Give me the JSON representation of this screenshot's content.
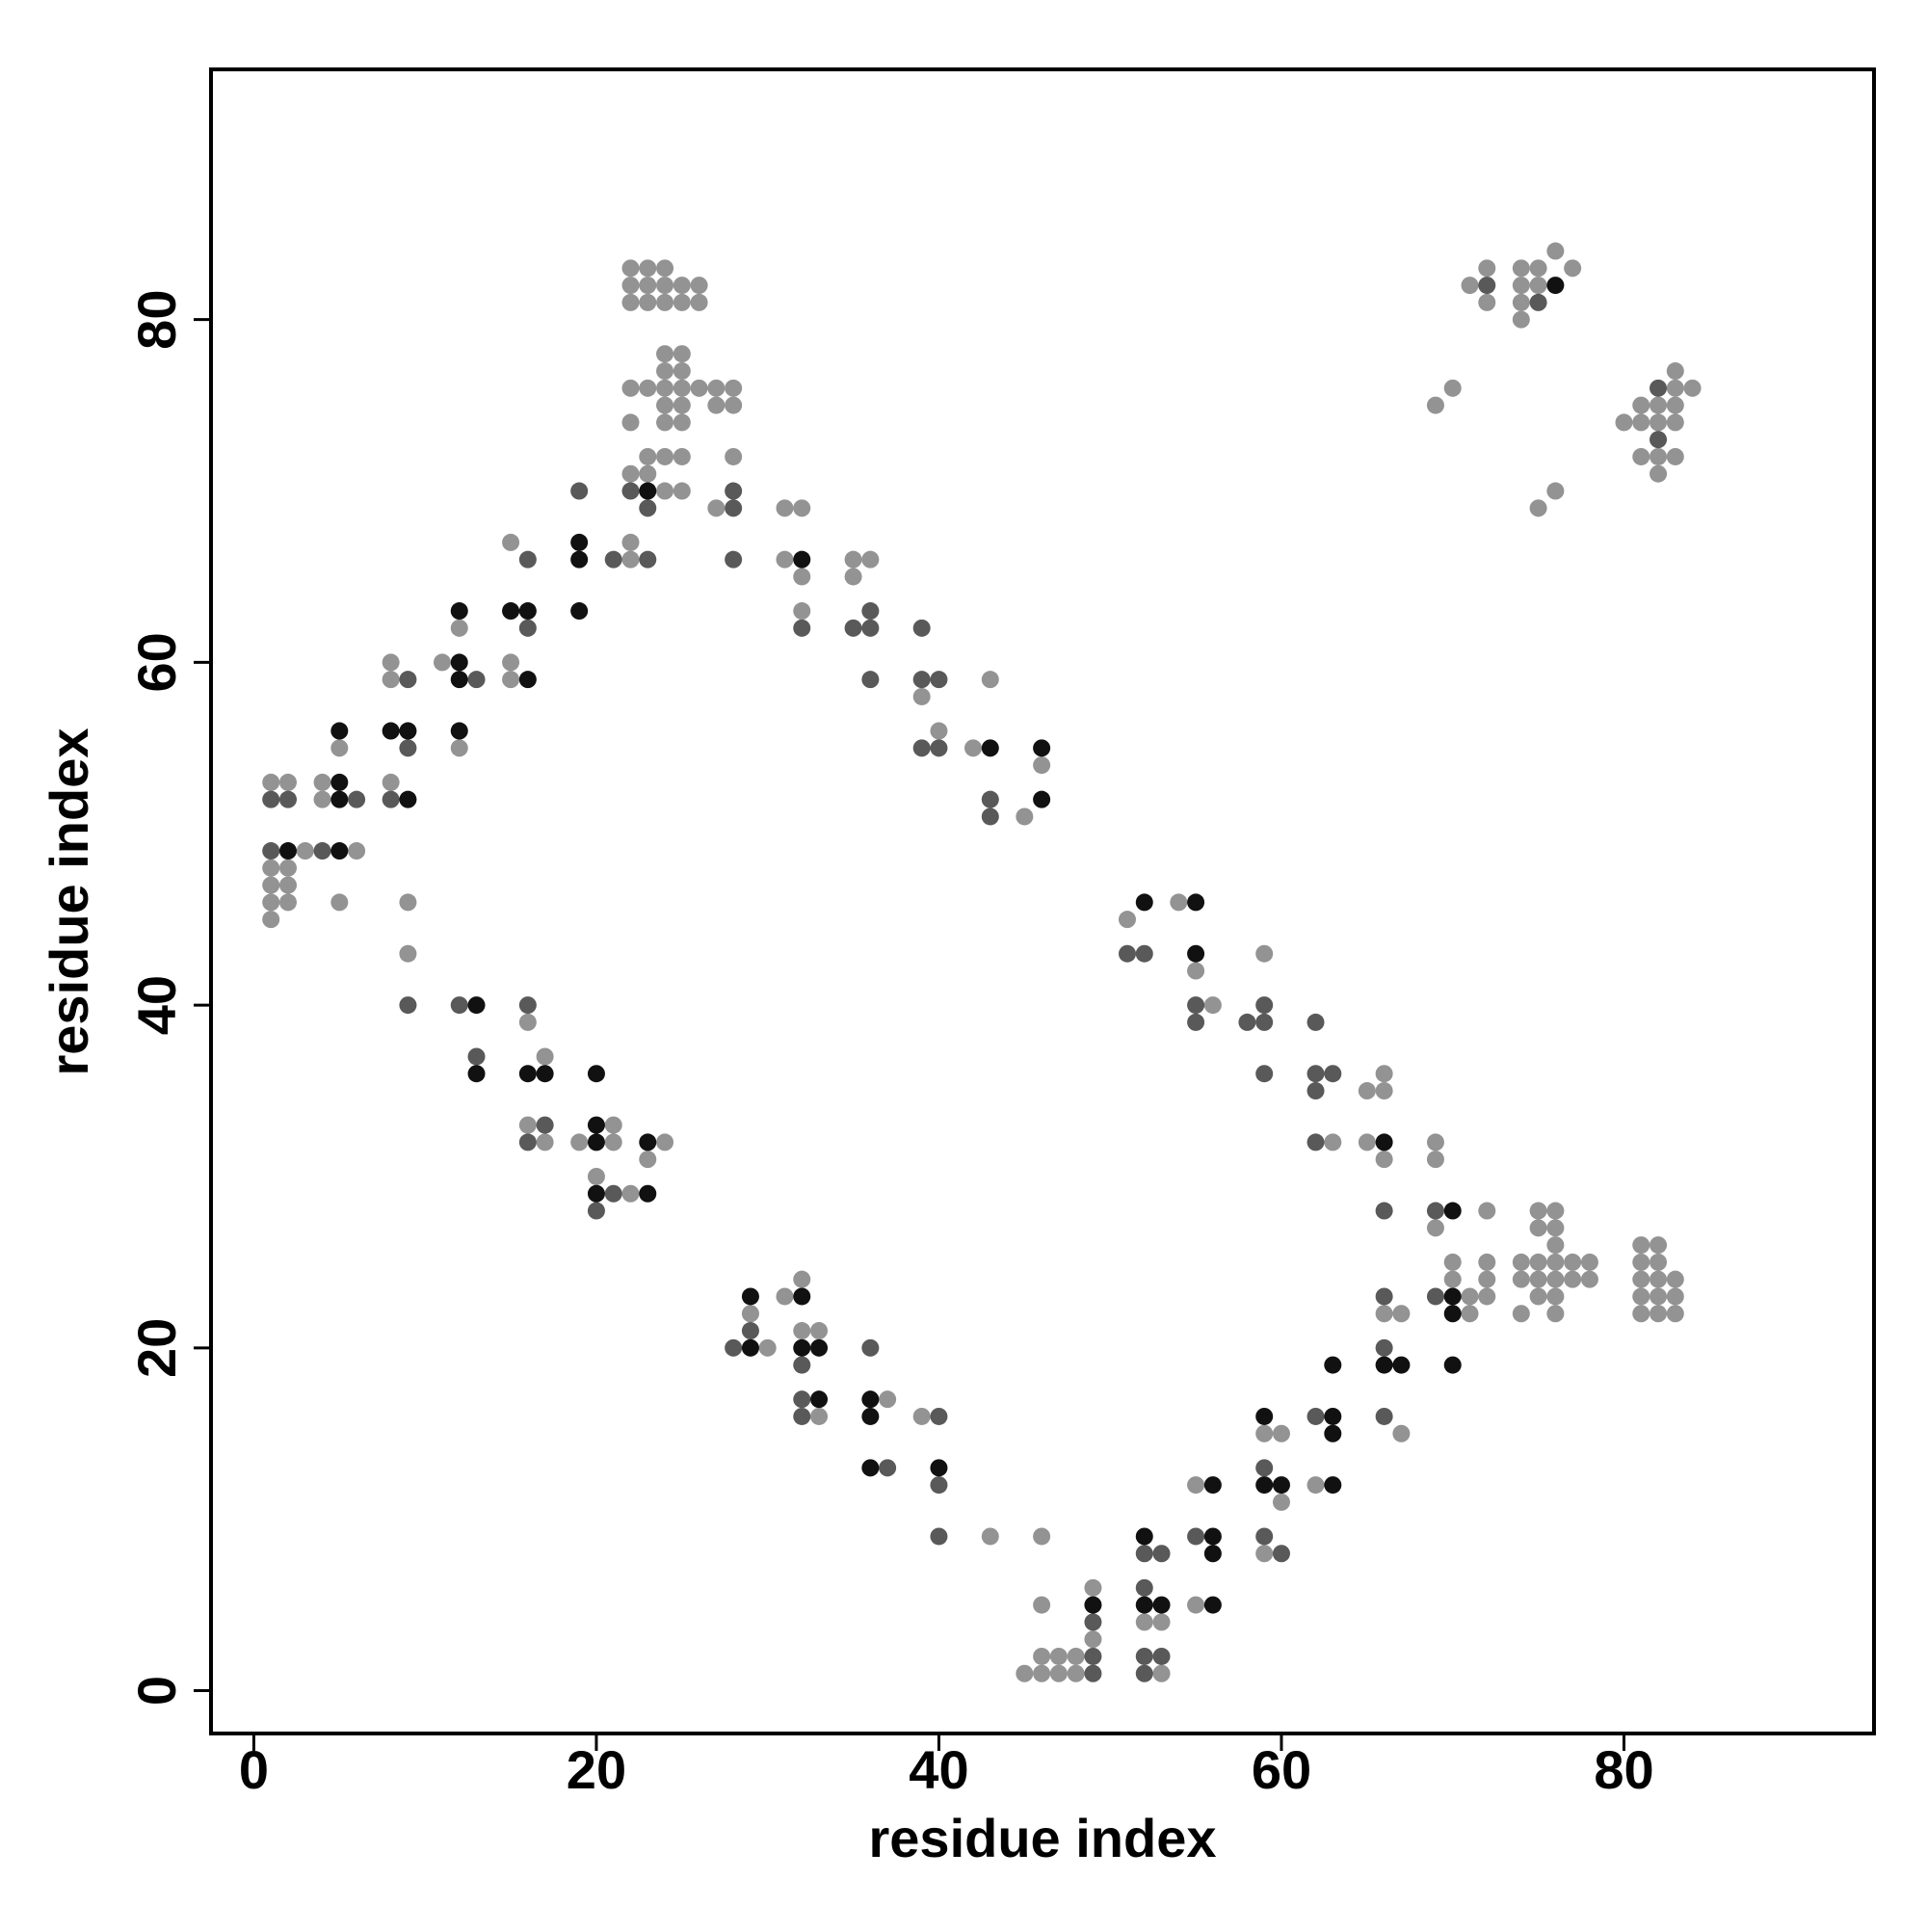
{
  "chart_data": {
    "type": "scatter",
    "x_label": "residue index",
    "y_label": "residue index",
    "xlim": [
      -2.5,
      94.6
    ],
    "ylim": [
      -2.5,
      94.6
    ],
    "xticks": [
      0,
      20,
      40,
      60,
      80
    ],
    "yticks": [
      0,
      20,
      40,
      60,
      80
    ],
    "grid": false,
    "series": [
      {
        "color": "#939393",
        "x": [
          22,
          23,
          24,
          22,
          23,
          24,
          25,
          26,
          22,
          23,
          24,
          25,
          26,
          24,
          25,
          24,
          25,
          22,
          23,
          24,
          25,
          26,
          27,
          28,
          24,
          25,
          27,
          28,
          22,
          24,
          25,
          23,
          24,
          25,
          28,
          22,
          23,
          24,
          25,
          27,
          22,
          22,
          1,
          2,
          4,
          4,
          5,
          3,
          6,
          1,
          2,
          1,
          2,
          1,
          2,
          1,
          5,
          8,
          8,
          8,
          11,
          12,
          12,
          15,
          15,
          15,
          9,
          9,
          16,
          17,
          16,
          17,
          19,
          21,
          21,
          20,
          22,
          23,
          24,
          31,
          32,
          31,
          32,
          32,
          35,
          35,
          36,
          43,
          40,
          42,
          46,
          45,
          39,
          29,
          30,
          31,
          32,
          32,
          33,
          33,
          37,
          39,
          43,
          46,
          46,
          45,
          46,
          47,
          48,
          46,
          47,
          48,
          49,
          49,
          51,
          54,
          55,
          56,
          59,
          65,
          66,
          66,
          65,
          63,
          66,
          69,
          69,
          69,
          70,
          70,
          71,
          71,
          72,
          72,
          72,
          72,
          74,
          75,
          76,
          75,
          76,
          76,
          74,
          75,
          76,
          77,
          78,
          74,
          75,
          76,
          77,
          78,
          76,
          76,
          75,
          81,
          82,
          81,
          82,
          81,
          82,
          83,
          81,
          82,
          83,
          81,
          82,
          83,
          66,
          67,
          67,
          55,
          60,
          59,
          60,
          59,
          53,
          52,
          53,
          55,
          62,
          71,
          72,
          72,
          74,
          75,
          76,
          77,
          74,
          74,
          75,
          74,
          69,
          70,
          75,
          76,
          80,
          81,
          81,
          82,
          82,
          83,
          83,
          83,
          83,
          84,
          81,
          82,
          83,
          82
        ],
        "values": [
          83,
          83,
          83,
          82,
          82,
          82,
          82,
          82,
          81,
          81,
          81,
          81,
          81,
          78,
          78,
          77,
          77,
          76,
          76,
          76,
          76,
          76,
          76,
          76,
          75,
          75,
          75,
          75,
          74,
          74,
          74,
          72,
          72,
          72,
          72,
          71,
          71,
          70,
          70,
          69,
          67,
          66,
          53,
          53,
          53,
          52,
          55,
          49,
          49,
          48,
          48,
          47,
          47,
          46,
          46,
          45,
          46,
          60,
          59,
          53,
          60,
          62,
          55,
          67,
          60,
          59,
          46,
          43,
          39,
          37,
          33,
          32,
          32,
          33,
          32,
          30,
          29,
          31,
          32,
          69,
          69,
          66,
          65,
          63,
          65,
          66,
          66,
          59,
          56,
          55,
          54,
          51,
          58,
          22,
          20,
          23,
          24,
          21,
          21,
          16,
          17,
          16,
          9,
          9,
          5,
          1,
          1,
          1,
          1,
          2,
          2,
          2,
          3,
          6,
          45,
          46,
          42,
          40,
          43,
          35,
          36,
          35,
          32,
          32,
          31,
          32,
          31,
          27,
          25,
          24,
          23,
          22,
          28,
          25,
          24,
          23,
          22,
          28,
          28,
          27,
          27,
          26,
          25,
          25,
          25,
          25,
          25,
          24,
          24,
          24,
          24,
          24,
          23,
          22,
          23,
          26,
          26,
          25,
          25,
          24,
          24,
          24,
          23,
          23,
          23,
          22,
          22,
          22,
          22,
          22,
          15,
          12,
          11,
          15,
          15,
          8,
          4,
          4,
          1,
          5,
          12,
          82,
          83,
          81,
          83,
          83,
          84,
          83,
          82,
          81,
          82,
          80,
          75,
          76,
          69,
          70,
          74,
          75,
          74,
          75,
          74,
          77,
          76,
          75,
          74,
          76,
          72,
          72,
          72,
          71
        ]
      },
      {
        "color": "#595959",
        "x": [
          22,
          23,
          23,
          28,
          28,
          28,
          19,
          21,
          16,
          16,
          1,
          1,
          2,
          6,
          9,
          9,
          8,
          13,
          4,
          9,
          12,
          13,
          16,
          17,
          16,
          20,
          21,
          32,
          35,
          36,
          36,
          36,
          39,
          39,
          40,
          39,
          40,
          43,
          43,
          28,
          29,
          32,
          32,
          32,
          36,
          37,
          40,
          40,
          40,
          49,
          49,
          49,
          51,
          52,
          55,
          55,
          58,
          59,
          59,
          59,
          62,
          62,
          62,
          63,
          62,
          66,
          69,
          69,
          66,
          66,
          66,
          62,
          52,
          53,
          52,
          52,
          53,
          52,
          55,
          59,
          59,
          60,
          72,
          75,
          82,
          82
        ],
        "values": [
          70,
          69,
          66,
          70,
          69,
          66,
          70,
          66,
          66,
          62,
          49,
          52,
          52,
          52,
          59,
          55,
          52,
          59,
          49,
          40,
          40,
          37,
          40,
          33,
          32,
          28,
          29,
          62,
          62,
          63,
          62,
          59,
          62,
          59,
          59,
          55,
          55,
          52,
          51,
          20,
          21,
          19,
          17,
          16,
          20,
          13,
          16,
          12,
          9,
          4,
          2,
          1,
          43,
          43,
          40,
          39,
          39,
          39,
          40,
          36,
          39,
          36,
          35,
          36,
          32,
          28,
          28,
          23,
          23,
          20,
          16,
          16,
          8,
          8,
          6,
          2,
          2,
          1,
          9,
          13,
          9,
          8,
          82,
          81,
          76,
          73
        ]
      },
      {
        "color": "#111111",
        "x": [
          23,
          32,
          5,
          5,
          5,
          5,
          2,
          8,
          9,
          9,
          12,
          12,
          12,
          12,
          15,
          16,
          16,
          19,
          19,
          19,
          13,
          13,
          16,
          17,
          20,
          20,
          20,
          20,
          23,
          23,
          43,
          46,
          46,
          29,
          29,
          32,
          32,
          33,
          33,
          36,
          36,
          36,
          40,
          49,
          52,
          55,
          55,
          66,
          70,
          70,
          70,
          70,
          66,
          67,
          63,
          63,
          63,
          63,
          59,
          59,
          60,
          52,
          52,
          53,
          56,
          56,
          56,
          56,
          76
        ],
        "values": [
          70,
          66,
          56,
          53,
          52,
          49,
          49,
          56,
          56,
          52,
          63,
          60,
          59,
          56,
          63,
          63,
          59,
          67,
          66,
          63,
          40,
          36,
          36,
          36,
          36,
          33,
          32,
          29,
          32,
          29,
          55,
          55,
          52,
          23,
          20,
          23,
          20,
          20,
          17,
          17,
          16,
          13,
          13,
          5,
          46,
          46,
          43,
          32,
          28,
          23,
          22,
          19,
          19,
          19,
          19,
          16,
          15,
          12,
          16,
          12,
          12,
          9,
          5,
          5,
          12,
          9,
          8,
          5,
          82
        ]
      }
    ]
  }
}
